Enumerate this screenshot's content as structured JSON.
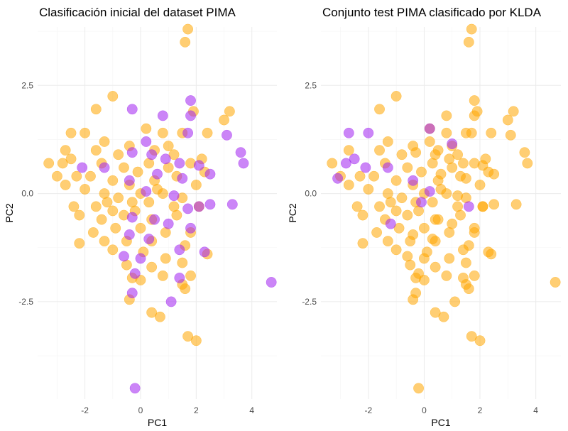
{
  "chart_data": [
    {
      "type": "scatter",
      "title": "Clasificación inicial del dataset PIMA",
      "xlabel": "PC1",
      "ylabel": "PC2",
      "xlim": [
        -3.7,
        4.9
      ],
      "ylim": [
        -4.75,
        3.85
      ],
      "x_ticks": [
        -2,
        0,
        2,
        4
      ],
      "x_tick_labels": [
        "-2",
        "0",
        "2",
        "4"
      ],
      "y_ticks": [
        -2.5,
        0,
        2.5
      ],
      "y_tick_labels": [
        "-2.5",
        "0.0",
        "2.5"
      ],
      "grid": true,
      "colors": {
        "orange": "#FFA500",
        "purple": "#A020F0"
      },
      "series": [
        {
          "color": "orange",
          "points": [
            [
              1.7,
              3.8
            ],
            [
              1.6,
              3.5
            ],
            [
              -1.0,
              2.25
            ],
            [
              -1.6,
              1.95
            ],
            [
              3.2,
              1.9
            ],
            [
              3.0,
              1.7
            ],
            [
              -2.5,
              1.4
            ],
            [
              -2.0,
              1.4
            ],
            [
              0.2,
              1.5
            ],
            [
              1.9,
              1.9
            ],
            [
              2.4,
              1.4
            ],
            [
              1.5,
              1.4
            ],
            [
              0.8,
              1.4
            ],
            [
              -1.3,
              1.2
            ],
            [
              -0.4,
              1.1
            ],
            [
              -2.7,
              1.0
            ],
            [
              -1.6,
              1.0
            ],
            [
              -0.8,
              0.9
            ],
            [
              0.5,
              1.0
            ],
            [
              1.2,
              0.9
            ],
            [
              2.2,
              0.8
            ],
            [
              -3.3,
              0.7
            ],
            [
              -2.8,
              0.7
            ],
            [
              -2.5,
              0.8
            ],
            [
              -1.4,
              0.7
            ],
            [
              -0.6,
              0.6
            ],
            [
              0.3,
              0.7
            ],
            [
              1.0,
              0.6
            ],
            [
              1.8,
              0.7
            ],
            [
              2.3,
              0.5
            ],
            [
              -3.0,
              0.4
            ],
            [
              -2.3,
              0.4
            ],
            [
              -1.8,
              0.4
            ],
            [
              -1.0,
              0.3
            ],
            [
              -0.4,
              0.2
            ],
            [
              0.5,
              0.3
            ],
            [
              1.3,
              0.4
            ],
            [
              2.0,
              0.2
            ],
            [
              -2.7,
              0.2
            ],
            [
              -2.0,
              0.1
            ],
            [
              -1.3,
              0.0
            ],
            [
              -0.8,
              -0.1
            ],
            [
              0.0,
              0.0
            ],
            [
              0.8,
              0.0
            ],
            [
              1.5,
              -0.1
            ],
            [
              -2.4,
              -0.3
            ],
            [
              -1.6,
              -0.3
            ],
            [
              -1.0,
              -0.4
            ],
            [
              -0.3,
              -0.2
            ],
            [
              0.3,
              -0.2
            ],
            [
              1.2,
              -0.3
            ],
            [
              2.1,
              -0.3
            ],
            [
              -2.2,
              -0.5
            ],
            [
              -1.4,
              -0.6
            ],
            [
              -0.6,
              -0.5
            ],
            [
              0.4,
              -0.6
            ],
            [
              1.3,
              -0.5
            ],
            [
              -1.7,
              -0.9
            ],
            [
              -0.9,
              -0.8
            ],
            [
              0.0,
              -0.8
            ],
            [
              0.9,
              -0.9
            ],
            [
              1.8,
              -0.9
            ],
            [
              -2.2,
              -1.15
            ],
            [
              -1.3,
              -1.1
            ],
            [
              -0.5,
              -1.1
            ],
            [
              0.4,
              -1.1
            ],
            [
              1.6,
              -1.2
            ],
            [
              -1.0,
              -1.3
            ],
            [
              0.1,
              -1.35
            ],
            [
              0.9,
              -1.5
            ],
            [
              2.4,
              -1.4
            ],
            [
              -0.5,
              -1.65
            ],
            [
              0.4,
              -1.7
            ],
            [
              1.5,
              -1.6
            ],
            [
              -0.3,
              -1.95
            ],
            [
              0.0,
              -2.0
            ],
            [
              0.8,
              -1.9
            ],
            [
              1.8,
              -1.9
            ],
            [
              1.5,
              -2.1
            ],
            [
              1.6,
              -2.2
            ],
            [
              -0.4,
              -2.45
            ],
            [
              0.4,
              -2.75
            ],
            [
              0.7,
              -2.85
            ],
            [
              2.0,
              -3.4
            ],
            [
              1.7,
              -3.3
            ],
            [
              -0.2,
              -0.4
            ],
            [
              0.6,
              0.1
            ],
            [
              -1.2,
              -0.2
            ],
            [
              1.0,
              1.1
            ],
            [
              -0.1,
              0.5
            ]
          ]
        },
        {
          "color": "purple",
          "points": [
            [
              -0.3,
              1.95
            ],
            [
              1.8,
              2.15
            ],
            [
              0.8,
              1.8
            ],
            [
              1.8,
              1.8
            ],
            [
              3.1,
              1.35
            ],
            [
              1.7,
              1.4
            ],
            [
              0.2,
              1.2
            ],
            [
              -0.3,
              0.95
            ],
            [
              0.4,
              0.9
            ],
            [
              0.9,
              0.8
            ],
            [
              1.4,
              0.7
            ],
            [
              2.1,
              0.65
            ],
            [
              -2.1,
              0.6
            ],
            [
              -1.3,
              0.6
            ],
            [
              0.6,
              0.45
            ],
            [
              -0.4,
              0.3
            ],
            [
              1.5,
              0.35
            ],
            [
              2.5,
              0.45
            ],
            [
              0.2,
              0.05
            ],
            [
              1.2,
              -0.05
            ],
            [
              1.7,
              -0.35
            ],
            [
              2.1,
              -0.3
            ],
            [
              2.5,
              -0.25
            ],
            [
              3.3,
              -0.25
            ],
            [
              -0.3,
              -0.55
            ],
            [
              0.5,
              -0.6
            ],
            [
              1.0,
              -0.7
            ],
            [
              1.8,
              -0.8
            ],
            [
              -0.4,
              -0.95
            ],
            [
              0.3,
              -1.05
            ],
            [
              -0.6,
              -1.45
            ],
            [
              0.0,
              -1.5
            ],
            [
              1.4,
              -1.3
            ],
            [
              2.3,
              -1.35
            ],
            [
              -0.2,
              -1.85
            ],
            [
              1.4,
              -1.95
            ],
            [
              4.7,
              -2.05
            ],
            [
              -0.3,
              -2.3
            ],
            [
              1.1,
              -2.5
            ],
            [
              -0.2,
              -4.5
            ],
            [
              3.6,
              0.95
            ],
            [
              3.7,
              0.7
            ]
          ]
        }
      ]
    },
    {
      "type": "scatter",
      "title": "Conjunto test PIMA clasificado por KLDA",
      "xlabel": "PC1",
      "ylabel": "PC2",
      "xlim": [
        -3.7,
        4.9
      ],
      "ylim": [
        -4.75,
        3.85
      ],
      "x_ticks": [
        -2,
        0,
        2,
        4
      ],
      "x_tick_labels": [
        "-2",
        "0",
        "2",
        "4"
      ],
      "y_ticks": [
        -2.5,
        0,
        2.5
      ],
      "y_tick_labels": [
        "-2.5",
        "0.0",
        "2.5"
      ],
      "grid": true,
      "colors": {
        "orange": "#FFA500",
        "purple": "#A020F0"
      },
      "series": [
        {
          "color": "orange",
          "points": [
            [
              1.7,
              3.8
            ],
            [
              1.6,
              3.5
            ],
            [
              -1.0,
              2.25
            ],
            [
              -1.6,
              1.95
            ],
            [
              3.2,
              1.9
            ],
            [
              3.0,
              1.7
            ],
            [
              0.2,
              1.5
            ],
            [
              1.9,
              1.9
            ],
            [
              2.4,
              1.4
            ],
            [
              1.5,
              1.4
            ],
            [
              0.8,
              1.4
            ],
            [
              -1.3,
              1.2
            ],
            [
              -0.4,
              1.1
            ],
            [
              -2.7,
              1.0
            ],
            [
              -1.6,
              1.0
            ],
            [
              -0.8,
              0.9
            ],
            [
              0.5,
              1.0
            ],
            [
              1.2,
              0.9
            ],
            [
              2.2,
              0.8
            ],
            [
              -3.3,
              0.7
            ],
            [
              -1.4,
              0.7
            ],
            [
              -0.6,
              0.6
            ],
            [
              0.3,
              0.7
            ],
            [
              1.0,
              0.6
            ],
            [
              1.8,
              0.7
            ],
            [
              2.3,
              0.5
            ],
            [
              -3.0,
              0.4
            ],
            [
              -2.3,
              0.4
            ],
            [
              -1.8,
              0.4
            ],
            [
              -1.0,
              0.3
            ],
            [
              -0.4,
              0.2
            ],
            [
              0.5,
              0.3
            ],
            [
              1.3,
              0.4
            ],
            [
              2.0,
              0.2
            ],
            [
              -2.7,
              0.2
            ],
            [
              -2.0,
              0.1
            ],
            [
              -1.3,
              0.0
            ],
            [
              -0.8,
              -0.1
            ],
            [
              0.0,
              0.0
            ],
            [
              0.8,
              0.0
            ],
            [
              1.5,
              -0.1
            ],
            [
              -2.4,
              -0.3
            ],
            [
              -1.6,
              -0.3
            ],
            [
              -1.0,
              -0.4
            ],
            [
              -0.3,
              -0.2
            ],
            [
              0.3,
              -0.2
            ],
            [
              1.2,
              -0.3
            ],
            [
              2.1,
              -0.3
            ],
            [
              -2.2,
              -0.5
            ],
            [
              -1.4,
              -0.6
            ],
            [
              -0.6,
              -0.5
            ],
            [
              0.4,
              -0.6
            ],
            [
              1.3,
              -0.5
            ],
            [
              -1.7,
              -0.9
            ],
            [
              -0.9,
              -0.8
            ],
            [
              0.0,
              -0.8
            ],
            [
              0.9,
              -0.9
            ],
            [
              1.8,
              -0.9
            ],
            [
              -2.2,
              -1.15
            ],
            [
              -1.3,
              -1.1
            ],
            [
              -0.5,
              -1.1
            ],
            [
              0.4,
              -1.1
            ],
            [
              1.6,
              -1.2
            ],
            [
              -1.0,
              -1.3
            ],
            [
              0.1,
              -1.35
            ],
            [
              0.9,
              -1.5
            ],
            [
              2.4,
              -1.4
            ],
            [
              -0.5,
              -1.65
            ],
            [
              0.4,
              -1.7
            ],
            [
              1.5,
              -1.6
            ],
            [
              -0.3,
              -1.95
            ],
            [
              0.0,
              -2.0
            ],
            [
              0.8,
              -1.9
            ],
            [
              1.8,
              -1.9
            ],
            [
              1.5,
              -2.1
            ],
            [
              1.6,
              -2.2
            ],
            [
              -0.4,
              -2.45
            ],
            [
              0.4,
              -2.75
            ],
            [
              0.7,
              -2.85
            ],
            [
              2.0,
              -3.4
            ],
            [
              1.7,
              -3.3
            ],
            [
              -0.2,
              -0.4
            ],
            [
              0.6,
              0.1
            ],
            [
              -1.2,
              -0.2
            ],
            [
              1.0,
              1.1
            ],
            [
              -0.1,
              0.5
            ],
            [
              1.8,
              2.15
            ],
            [
              0.8,
              1.8
            ],
            [
              1.8,
              1.8
            ],
            [
              3.1,
              1.35
            ],
            [
              1.7,
              1.4
            ],
            [
              0.2,
              1.2
            ],
            [
              -0.3,
              0.95
            ],
            [
              0.4,
              0.9
            ],
            [
              0.9,
              0.8
            ],
            [
              1.4,
              0.7
            ],
            [
              2.1,
              0.65
            ],
            [
              0.6,
              0.45
            ],
            [
              1.5,
              0.35
            ],
            [
              2.5,
              0.45
            ],
            [
              1.2,
              -0.05
            ],
            [
              2.1,
              -0.3
            ],
            [
              2.5,
              -0.25
            ],
            [
              3.3,
              -0.25
            ],
            [
              0.5,
              -0.6
            ],
            [
              1.0,
              -0.7
            ],
            [
              1.8,
              -0.8
            ],
            [
              -0.4,
              -0.95
            ],
            [
              0.3,
              -1.05
            ],
            [
              -0.6,
              -1.45
            ],
            [
              0.0,
              -1.5
            ],
            [
              1.4,
              -1.3
            ],
            [
              2.3,
              -1.35
            ],
            [
              -0.2,
              -1.85
            ],
            [
              1.4,
              -1.95
            ],
            [
              4.7,
              -2.05
            ],
            [
              -0.3,
              -2.3
            ],
            [
              1.1,
              -2.5
            ],
            [
              -0.2,
              -4.5
            ],
            [
              3.6,
              0.95
            ],
            [
              3.7,
              0.7
            ]
          ]
        },
        {
          "color": "purple",
          "points": [
            [
              -2.7,
              1.4
            ],
            [
              -2.0,
              1.4
            ],
            [
              -2.8,
              0.7
            ],
            [
              -2.5,
              0.8
            ],
            [
              -2.1,
              0.6
            ],
            [
              -1.3,
              0.6
            ],
            [
              -0.4,
              0.3
            ],
            [
              0.2,
              0.05
            ],
            [
              0.2,
              1.5
            ],
            [
              1.0,
              1.15
            ],
            [
              -0.1,
              -0.2
            ],
            [
              1.6,
              -0.3
            ],
            [
              -1.2,
              -0.7
            ],
            [
              -3.1,
              0.35
            ]
          ]
        }
      ]
    }
  ]
}
